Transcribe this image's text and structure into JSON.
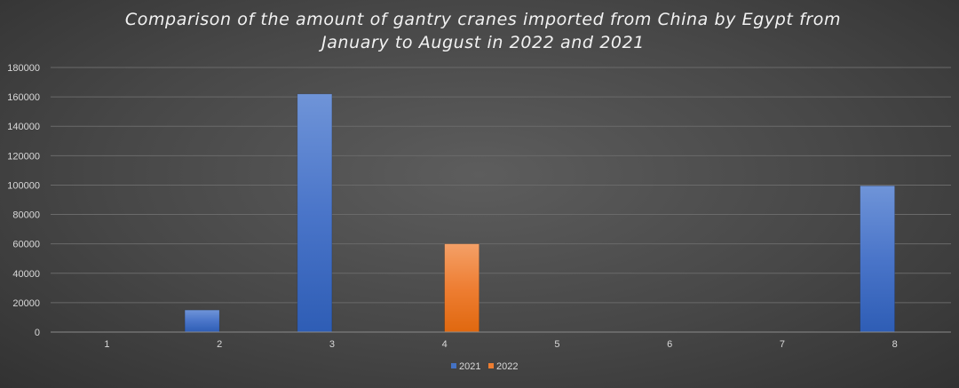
{
  "chart_data": {
    "type": "bar",
    "title": "Comparison of the amount of gantry cranes imported from China by Egypt from January to August in 2022 and 2021",
    "title_lines": [
      "Comparison of the amount of gantry cranes imported from China by Egypt from",
      "January to August in 2022 and 2021"
    ],
    "categories": [
      "1",
      "2",
      "3",
      "4",
      "5",
      "6",
      "7",
      "8"
    ],
    "series": [
      {
        "name": "2021",
        "color": "#4472c4",
        "values": [
          0,
          15000,
          162000,
          0,
          0,
          0,
          0,
          99500
        ]
      },
      {
        "name": "2022",
        "color": "#ed7d31",
        "values": [
          0,
          0,
          0,
          60000,
          0,
          0,
          0,
          0
        ]
      }
    ],
    "y_ticks": [
      "0",
      "20000",
      "40000",
      "60000",
      "80000",
      "100000",
      "120000",
      "140000",
      "160000",
      "180000"
    ],
    "ylim": [
      0,
      180000
    ],
    "xlabel": "",
    "ylabel": "",
    "grid": true,
    "legend_position": "bottom"
  }
}
